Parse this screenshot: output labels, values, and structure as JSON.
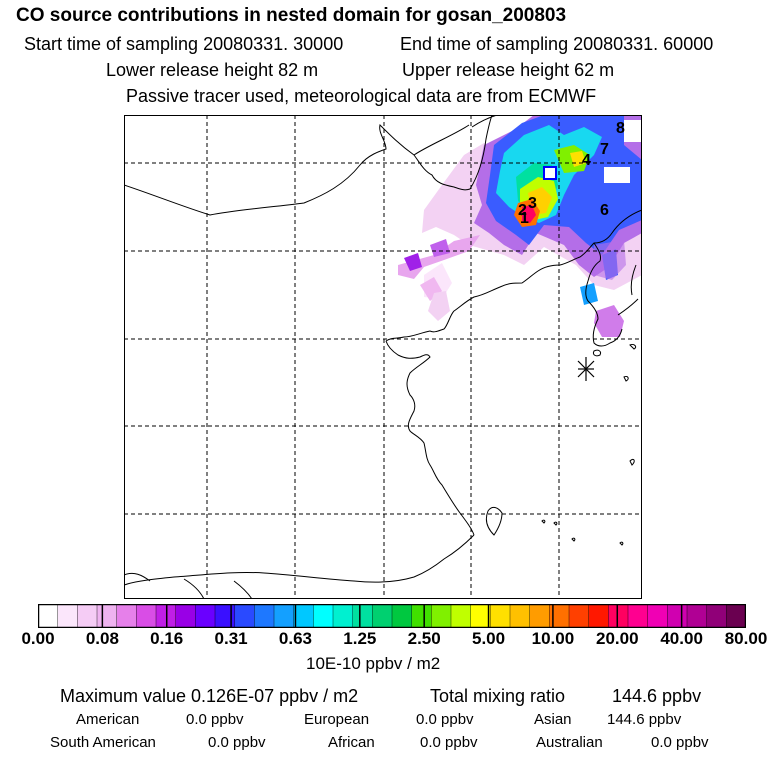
{
  "header": {
    "title": "CO  source contributions in nested domain for gosan_200803",
    "start_label": "Start time of sampling 20080331. 30000",
    "end_label": "End time of sampling 20080331. 60000",
    "lower_label": "Lower release height   82 m",
    "upper_label": "Upper release height   62 m",
    "tracer_note": "Passive tracer used, meteorological data are from ECMWF"
  },
  "map": {
    "source_labels": [
      "1",
      "2",
      "3",
      "4",
      "6",
      "7",
      "8"
    ],
    "receptor_symbol": "asterisk"
  },
  "colorbar": {
    "tick_labels": [
      "0.00",
      "0.08",
      "0.16",
      "0.31",
      "0.63",
      "1.25",
      "2.50",
      "5.00",
      "10.00",
      "20.00",
      "40.00",
      "80.00"
    ],
    "colors": [
      "#ffffff",
      "#fbe6fb",
      "#f5ccf5",
      "#efb3f0",
      "#e680ea",
      "#d94de6",
      "#c01ee6",
      "#9900e6",
      "#6a00ff",
      "#3a10ff",
      "#2a4aff",
      "#1e78ff",
      "#14a0ff",
      "#00c8ff",
      "#00ffff",
      "#00f0d0",
      "#00e0a0",
      "#00d070",
      "#00c840",
      "#40e000",
      "#80f000",
      "#c0ff00",
      "#ffff00",
      "#ffe000",
      "#ffc000",
      "#ff9c00",
      "#ff7000",
      "#ff4000",
      "#ff1800",
      "#ff0060",
      "#ff0090",
      "#f000b4",
      "#d000b0",
      "#b00094",
      "#900078",
      "#6a0050"
    ],
    "unit_label": "10E-10 ppbv / m2"
  },
  "summary": {
    "max_label": "Maximum value  0.126E-07 ppbv / m2",
    "total_label": "Total mixing ratio",
    "total_value": "144.6 ppbv",
    "regions": [
      {
        "name": "American",
        "value": "0.0 ppbv"
      },
      {
        "name": "European",
        "value": "0.0 ppbv"
      },
      {
        "name": "Asian",
        "value": "144.6 ppbv"
      },
      {
        "name": "South American",
        "value": "0.0 ppbv"
      },
      {
        "name": "African",
        "value": "0.0 ppbv"
      },
      {
        "name": "Australian",
        "value": "0.0 ppbv"
      }
    ]
  }
}
